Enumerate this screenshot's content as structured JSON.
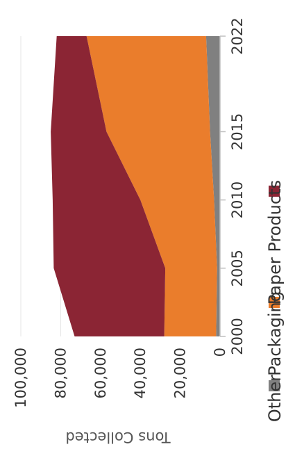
{
  "chart_data": {
    "type": "area",
    "stacked": true,
    "orientation": "rotated-90-clockwise",
    "title": "",
    "xlabel": "",
    "ylabel": "Tons Collected",
    "x": [
      2000,
      2005,
      2010,
      2015,
      2022
    ],
    "x_ticks": [
      "2000",
      "2005",
      "2010",
      "2015",
      "2022"
    ],
    "ylim": [
      0,
      100000
    ],
    "y_ticks": [
      "0",
      "20,000",
      "40,000",
      "60,000",
      "80,000",
      "100,000"
    ],
    "grid": true,
    "legend_position": "bottom",
    "series": [
      {
        "name": "Other",
        "color": "#808080",
        "values": [
          2000,
          1500,
          3000,
          5000,
          7000
        ]
      },
      {
        "name": "Packaging",
        "color": "#EA7D2C",
        "values": [
          26000,
          26000,
          37000,
          52000,
          60000
        ]
      },
      {
        "name": "Paper Products",
        "color": "#8B2534",
        "values": [
          45000,
          56000,
          44000,
          28000,
          15000
        ]
      }
    ]
  }
}
